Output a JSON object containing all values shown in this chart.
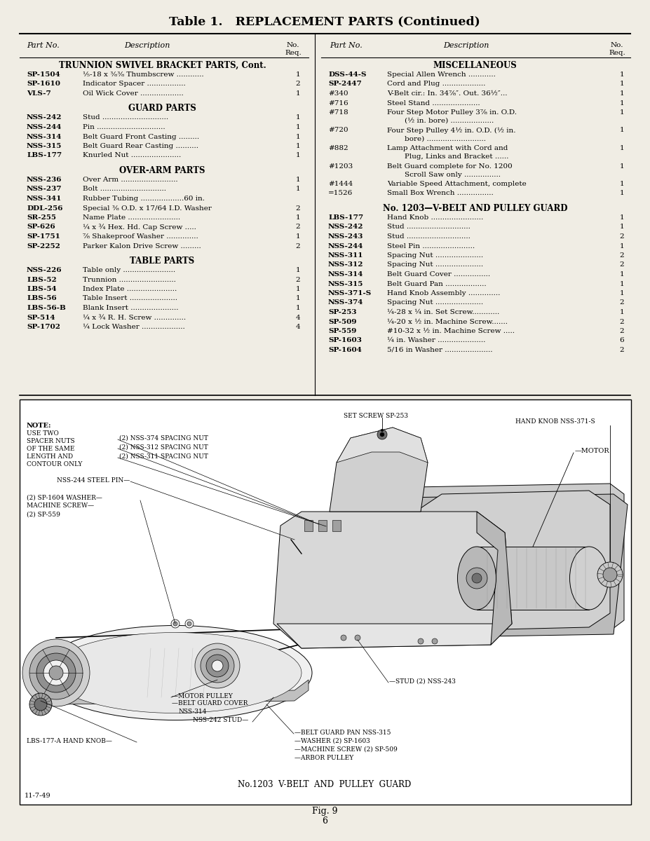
{
  "title": "Table 1.   REPLACEMENT PARTS (Continued)",
  "bg_color": "#f0ede4",
  "left_sections": [
    {
      "heading": "TRUNNION SWIVEL BRACKET PARTS, Cont.",
      "rows": [
        [
          "SP-1504",
          "⅕-18 x ⅜⅜ Thumbscrew ............",
          "1"
        ],
        [
          "SP-1610",
          "Indicator Spacer .................",
          "2"
        ],
        [
          "VLS-7",
          "Oil Wick Cover ...................",
          "1"
        ]
      ]
    },
    {
      "heading": "GUARD PARTS",
      "rows": [
        [
          "NSS-242",
          "Stud .............................",
          "1"
        ],
        [
          "NSS-244",
          "Pin ..............................",
          "1"
        ],
        [
          "NSS-314",
          "Belt Guard Front Casting .........",
          "1"
        ],
        [
          "NSS-315",
          "Belt Guard Rear Casting ..........",
          "1"
        ],
        [
          "LBS-177",
          "Knurled Nut ......................",
          "1"
        ]
      ]
    },
    {
      "heading": "OVER-ARM PARTS",
      "rows": [
        [
          "NSS-236",
          "Over Arm .........................",
          "1"
        ],
        [
          "NSS-237",
          "Bolt .............................",
          "1"
        ],
        [
          "NSS-341",
          "Rubber Tubing ...................60 in.",
          ""
        ],
        [
          "DDL-256",
          "Special ⅜ O.D. x 17/64 I.D. Washer",
          "2"
        ],
        [
          "SR-255",
          "Name Plate .......................",
          "1"
        ],
        [
          "SP-626",
          "¼ x ¾ Hex. Hd. Cap Screw .....",
          "2"
        ],
        [
          "SP-1751",
          "⅞ Shakeproof Washer ..............",
          "1"
        ],
        [
          "SP-2252",
          "Parker Kalon Drive Screw .........",
          "2"
        ]
      ]
    },
    {
      "heading": "TABLE PARTS",
      "rows": [
        [
          "NSS-226",
          "Table only .......................",
          "1"
        ],
        [
          "LBS-52",
          "Trunnion .........................",
          "2"
        ],
        [
          "LBS-54",
          "Index Plate ......................",
          "1"
        ],
        [
          "LBS-56",
          "Table Insert .....................",
          "1"
        ],
        [
          "LBS-56-B",
          "Blank Insert .....................",
          "1"
        ],
        [
          "SP-514",
          "¼ x ¾ R. H. Screw ..............",
          "4"
        ],
        [
          "SP-1702",
          "¼ Lock Washer ...................",
          "4"
        ]
      ]
    }
  ],
  "right_sections": [
    {
      "heading": "MISCELLANEOUS",
      "rows": [
        [
          "DSS-44-S",
          "Special Allen Wrench ............",
          "1"
        ],
        [
          "SP-2447",
          "Cord and Plug ...................",
          "1"
        ],
        [
          "#340",
          "V-Belt cir.: In. 34⅞″. Out. 36½″...",
          "1"
        ],
        [
          "#716",
          "Steel Stand .....................",
          "1"
        ],
        [
          "#718",
          "Four Step Motor Pulley 3⅞ in. O.D.\n    (½ in. bore) ...................",
          "1"
        ],
        [
          "#720",
          "Four Step Pulley 4½ in. O.D. (½ in.\n    bore) ..........................",
          "1"
        ],
        [
          "#882",
          "Lamp Attachment with Cord and\n    Plug, Links and Bracket ......",
          "1"
        ],
        [
          "#1203",
          "Belt Guard complete for No. 1200\n    Scroll Saw only ................",
          "1"
        ],
        [
          "#1444",
          "Variable Speed Attachment, complete",
          "1"
        ],
        [
          "=1526",
          "Small Box Wrench ................",
          "1"
        ]
      ]
    },
    {
      "heading": "No. 1203—V-BELT AND PULLEY GUARD",
      "rows": [
        [
          "LBS-177",
          "Hand Knob .......................",
          "1"
        ],
        [
          "NSS-242",
          "Stud ............................",
          "1"
        ],
        [
          "NSS-243",
          "Stud ............................",
          "2"
        ],
        [
          "NSS-244",
          "Steel Pin .......................",
          "1"
        ],
        [
          "NSS-311",
          "Spacing Nut .....................",
          "2"
        ],
        [
          "NSS-312",
          "Spacing Nut .....................",
          "2"
        ],
        [
          "NSS-314",
          "Belt Guard Cover ................",
          "1"
        ],
        [
          "NSS-315",
          "Belt Guard Pan ..................",
          "1"
        ],
        [
          "NSS-371-S",
          "Hand Knob Assembly ..............",
          "1"
        ],
        [
          "NSS-374",
          "Spacing Nut .....................",
          "2"
        ],
        [
          "SP-253",
          "¼-28 x ¼ in. Set Screw............",
          "1"
        ],
        [
          "SP-509",
          "¼-20 x ½ in. Machine Screw.......",
          "2"
        ],
        [
          "SP-559",
          "#10-32 x ½ in. Machine Screw .....",
          "2"
        ],
        [
          "SP-1603",
          "¼ in. Washer .....................",
          "6"
        ],
        [
          "SP-1604",
          "5/16 in Washer .....................",
          "2"
        ]
      ]
    }
  ],
  "diagram_caption": "No.1203  V-BELT  AND  PULLEY  GUARD",
  "fig_label": "Fig. 9",
  "fig_number": "6",
  "date_code": "11-7-49"
}
